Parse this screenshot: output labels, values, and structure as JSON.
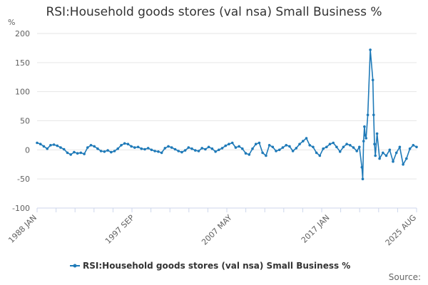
{
  "chart_data": {
    "type": "line",
    "title": "RSI:Household goods stores (val nsa) Small Business %",
    "ylabel": "%",
    "xlabel": "",
    "ylim": [
      -100,
      200
    ],
    "yticks": [
      -100,
      -50,
      0,
      50,
      100,
      150,
      200
    ],
    "xlim": [
      "1988 JAN",
      "2025 AUG"
    ],
    "xtick_labels": [
      "1988 JAN",
      "1997 SEP",
      "2007 MAY",
      "2017 JAN",
      "2025 AUG"
    ],
    "grid": true,
    "legend_position": "bottom-center",
    "series": [
      {
        "name": "RSI:Household goods stores (val nsa) Small Business %",
        "color": "#1f7ab8",
        "x": [
          "1988 JAN",
          "1988 MAY",
          "1988 SEP",
          "1989 JAN",
          "1989 MAY",
          "1989 SEP",
          "1990 JAN",
          "1990 MAY",
          "1990 SEP",
          "1991 JAN",
          "1991 MAY",
          "1991 SEP",
          "1992 JAN",
          "1992 MAY",
          "1992 SEP",
          "1993 JAN",
          "1993 MAY",
          "1993 SEP",
          "1994 JAN",
          "1994 MAY",
          "1994 SEP",
          "1995 JAN",
          "1995 MAY",
          "1995 SEP",
          "1996 JAN",
          "1996 MAY",
          "1996 SEP",
          "1997 JAN",
          "1997 MAY",
          "1997 SEP",
          "1998 JAN",
          "1998 MAY",
          "1998 SEP",
          "1999 JAN",
          "1999 MAY",
          "1999 SEP",
          "2000 JAN",
          "2000 MAY",
          "2000 SEP",
          "2001 JAN",
          "2001 MAY",
          "2001 SEP",
          "2002 JAN",
          "2002 MAY",
          "2002 SEP",
          "2003 JAN",
          "2003 MAY",
          "2003 SEP",
          "2004 JAN",
          "2004 MAY",
          "2004 SEP",
          "2005 JAN",
          "2005 MAY",
          "2005 SEP",
          "2006 JAN",
          "2006 MAY",
          "2006 SEP",
          "2007 JAN",
          "2007 MAY",
          "2007 SEP",
          "2008 JAN",
          "2008 MAY",
          "2008 SEP",
          "2009 JAN",
          "2009 MAY",
          "2009 SEP",
          "2010 JAN",
          "2010 MAY",
          "2010 SEP",
          "2011 JAN",
          "2011 MAY",
          "2011 SEP",
          "2012 JAN",
          "2012 MAY",
          "2012 SEP",
          "2013 JAN",
          "2013 MAY",
          "2013 SEP",
          "2014 JAN",
          "2014 MAY",
          "2014 SEP",
          "2015 JAN",
          "2015 MAY",
          "2015 SEP",
          "2016 JAN",
          "2016 MAY",
          "2016 SEP",
          "2017 JAN",
          "2017 MAY",
          "2017 SEP",
          "2018 JAN",
          "2018 MAY",
          "2018 SEP",
          "2019 JAN",
          "2019 MAY",
          "2019 SEP",
          "2019 DEC",
          "2020 MAR",
          "2020 APR",
          "2020 MAY",
          "2020 JUN",
          "2020 JUL",
          "2020 AUG",
          "2020 OCT",
          "2021 JAN",
          "2021 APR",
          "2021 MAY",
          "2021 JUN",
          "2021 JUL",
          "2021 SEP",
          "2021 DEC",
          "2022 APR",
          "2022 AUG",
          "2022 DEC",
          "2023 APR",
          "2023 AUG",
          "2023 DEC",
          "2024 APR",
          "2024 AUG",
          "2024 DEC",
          "2025 APR",
          "2025 AUG"
        ],
        "values": [
          12,
          10,
          6,
          2,
          8,
          9,
          7,
          4,
          1,
          -5,
          -8,
          -4,
          -6,
          -5,
          -7,
          4,
          8,
          6,
          2,
          -2,
          -3,
          -1,
          -4,
          -2,
          2,
          8,
          11,
          10,
          6,
          4,
          5,
          2,
          1,
          3,
          0,
          -2,
          -3,
          -5,
          3,
          6,
          4,
          1,
          -2,
          -4,
          -1,
          4,
          2,
          -1,
          -2,
          3,
          1,
          5,
          2,
          -3,
          0,
          3,
          7,
          10,
          12,
          4,
          6,
          2,
          -6,
          -8,
          2,
          10,
          12,
          -5,
          -10,
          8,
          5,
          -2,
          0,
          4,
          8,
          6,
          -2,
          3,
          10,
          15,
          20,
          8,
          5,
          -5,
          -10,
          2,
          5,
          10,
          12,
          5,
          -3,
          5,
          10,
          8,
          4,
          -2,
          5,
          -30,
          -50,
          15,
          40,
          25,
          20,
          60,
          172,
          120,
          60,
          10,
          -10,
          28,
          -15,
          -5,
          -10,
          0,
          -20,
          -5,
          5,
          -25,
          -15,
          2,
          8,
          5
        ]
      }
    ]
  },
  "source": {
    "label": "Source:"
  }
}
